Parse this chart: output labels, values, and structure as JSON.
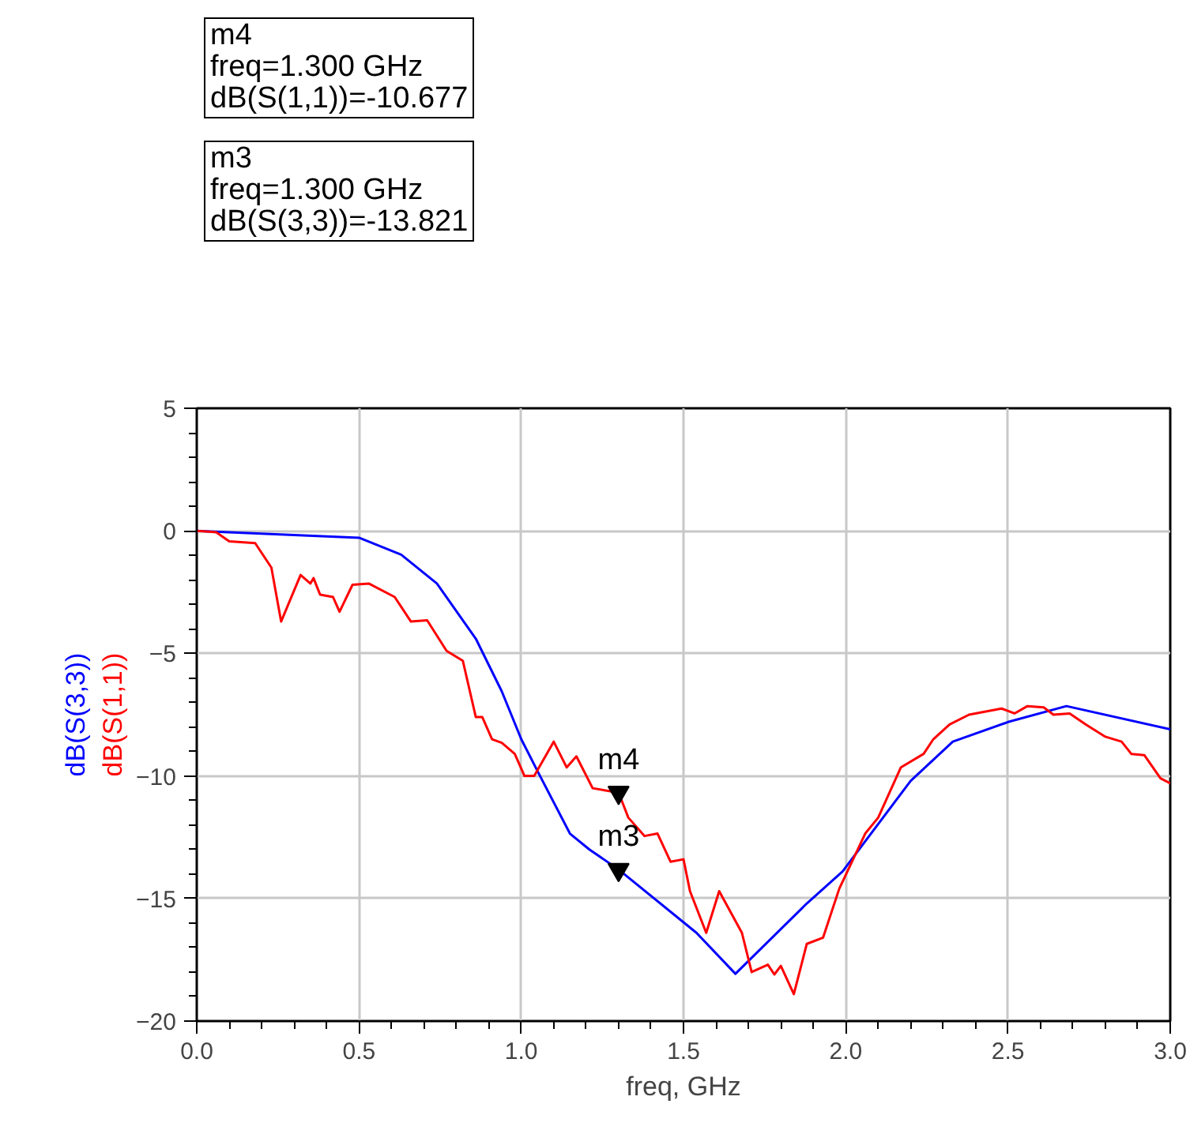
{
  "chart_data": {
    "type": "line",
    "xlabel": "freq, GHz",
    "xlim": [
      0,
      3
    ],
    "xticks": [
      {
        "value": 0,
        "label": "0.0"
      },
      0.5,
      {
        "value": 1,
        "label": "1.0"
      },
      1.5,
      {
        "value": 2,
        "label": "2.0"
      },
      2.5,
      {
        "value": 3,
        "label": "3.0"
      }
    ],
    "ylim": [
      -20,
      5
    ],
    "yticks": [
      -20,
      -15,
      -10,
      -5,
      0,
      5
    ],
    "grid": true,
    "marker": "none",
    "line_style": "solid",
    "series": [
      {
        "name": "dB(S(3,3))",
        "color": "#0000ff",
        "x": [
          0,
          0.5,
          0.63,
          0.74,
          0.86,
          0.94,
          1.0,
          1.05,
          1.15,
          1.21,
          1.3,
          1.54,
          1.66,
          1.88,
          1.99,
          2.2,
          2.33,
          2.5,
          2.68,
          3.0
        ],
        "values": [
          0,
          -0.28,
          -0.97,
          -2.15,
          -4.4,
          -6.55,
          -8.5,
          -9.8,
          -12.35,
          -13.0,
          -13.82,
          -16.4,
          -18.07,
          -15.2,
          -13.9,
          -10.2,
          -8.6,
          -7.8,
          -7.15,
          -8.1
        ]
      },
      {
        "name": "dB(S(1,1))",
        "color": "#ff0000",
        "x": [
          0,
          0.06,
          0.1,
          0.18,
          0.23,
          0.26,
          0.32,
          0.35,
          0.36,
          0.38,
          0.42,
          0.44,
          0.48,
          0.53,
          0.61,
          0.63,
          0.66,
          0.71,
          0.77,
          0.82,
          0.86,
          0.88,
          0.91,
          0.94,
          0.98,
          1.01,
          1.04,
          1.1,
          1.14,
          1.17,
          1.22,
          1.3,
          1.33,
          1.38,
          1.42,
          1.46,
          1.5,
          1.52,
          1.57,
          1.61,
          1.68,
          1.71,
          1.76,
          1.78,
          1.8,
          1.84,
          1.88,
          1.93,
          1.98,
          2.06,
          2.1,
          2.17,
          2.24,
          2.27,
          2.32,
          2.38,
          2.48,
          2.52,
          2.56,
          2.61,
          2.64,
          2.69,
          2.74,
          2.8,
          2.85,
          2.88,
          2.92,
          2.97,
          3.0
        ],
        "values": [
          0,
          -0.06,
          -0.43,
          -0.5,
          -1.5,
          -3.7,
          -1.8,
          -2.15,
          -1.93,
          -2.6,
          -2.7,
          -3.3,
          -2.2,
          -2.15,
          -2.7,
          -3.1,
          -3.7,
          -3.65,
          -4.9,
          -5.3,
          -7.6,
          -7.6,
          -8.5,
          -8.65,
          -9.1,
          -10.0,
          -10.0,
          -8.6,
          -9.65,
          -9.2,
          -10.5,
          -10.68,
          -11.7,
          -12.45,
          -12.35,
          -13.5,
          -13.4,
          -14.7,
          -16.4,
          -14.7,
          -16.4,
          -18.0,
          -17.7,
          -18.1,
          -17.75,
          -18.9,
          -16.85,
          -16.6,
          -14.6,
          -12.35,
          -11.7,
          -9.65,
          -9.1,
          -8.5,
          -7.9,
          -7.5,
          -7.25,
          -7.45,
          -7.15,
          -7.2,
          -7.5,
          -7.45,
          -7.9,
          -8.4,
          -8.6,
          -9.1,
          -9.15,
          -10.1,
          -10.3
        ]
      }
    ],
    "annotations": [
      "m4\nfreq=1.300 GHz\ndB(S(1,1))=-10.677",
      "m3\nfreq=1.300 GHz\ndB(S(3,3))=-13.821",
      {
        "text": "m4",
        "x": 1.3,
        "y": -10.677
      },
      {
        "text": "m3",
        "x": 1.3,
        "y": -13.821
      }
    ]
  }
}
